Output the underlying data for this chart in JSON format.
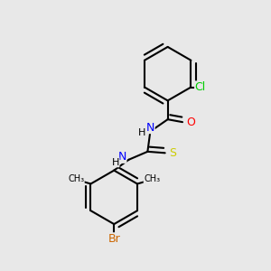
{
  "background_color": "#e8e8e8",
  "bond_color": "#000000",
  "atom_colors": {
    "Cl": "#00cc00",
    "O": "#ff0000",
    "N": "#0000ff",
    "S": "#cccc00",
    "Br": "#cc6600",
    "C": "#000000",
    "H": "#000000"
  },
  "figsize": [
    3.0,
    3.0
  ],
  "dpi": 100
}
